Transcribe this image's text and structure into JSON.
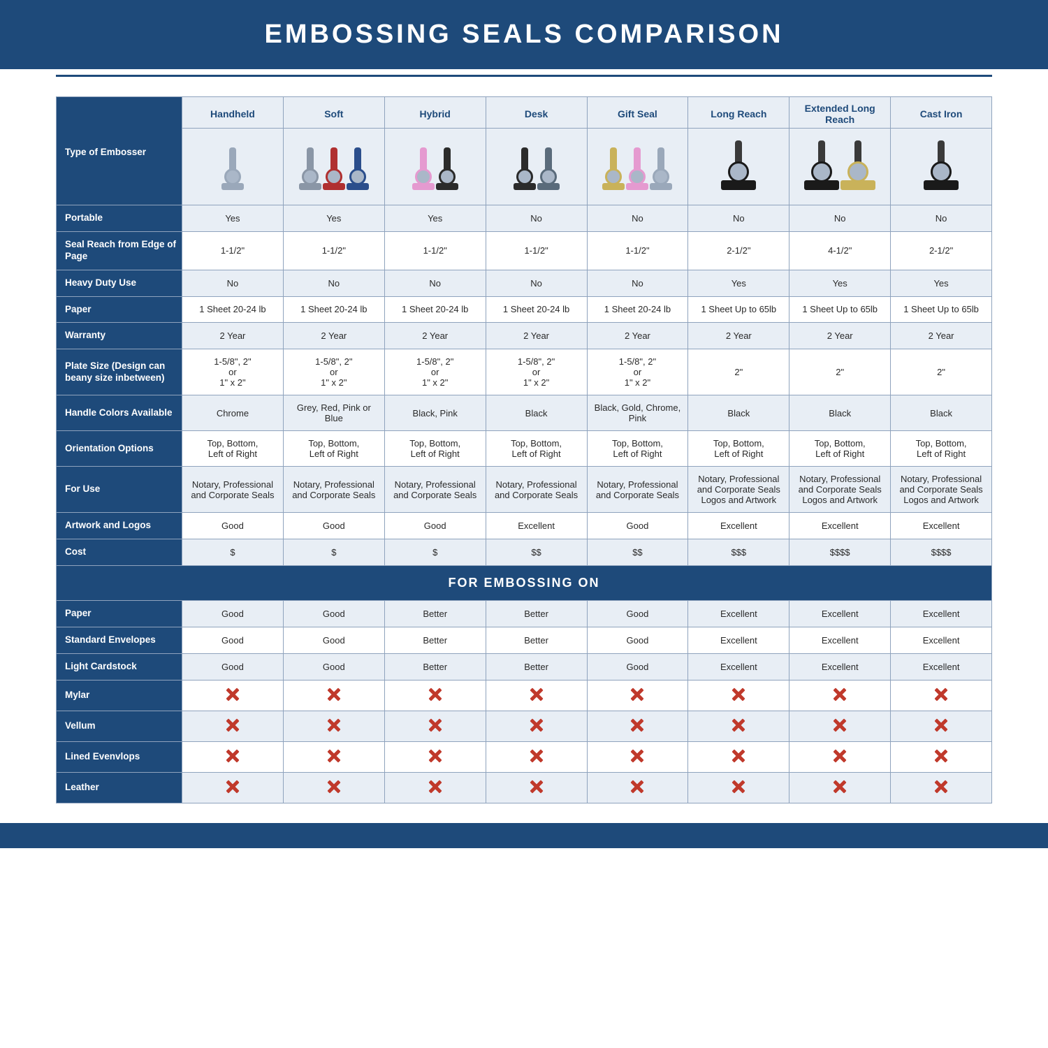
{
  "brand_color": "#1e4a7a",
  "row_alt_bg": "#e8eef5",
  "title": "EMBOSSING SEALS COMPARISON",
  "header_label": "Type of Embosser",
  "columns": [
    "Handheld",
    "Soft",
    "Hybrid",
    "Desk",
    "Gift Seal",
    "Long Reach",
    "Extended Long Reach",
    "Cast Iron"
  ],
  "section_label": "FOR EMBOSSING ON",
  "rows_main": [
    {
      "label": "Portable",
      "cells": [
        "Yes",
        "Yes",
        "Yes",
        "No",
        "No",
        "No",
        "No",
        "No"
      ]
    },
    {
      "label": "Seal Reach from Edge of Page",
      "cells": [
        "1-1/2\"",
        "1-1/2\"",
        "1-1/2\"",
        "1-1/2\"",
        "1-1/2\"",
        "2-1/2\"",
        "4-1/2\"",
        "2-1/2\""
      ]
    },
    {
      "label": "Heavy Duty Use",
      "cells": [
        "No",
        "No",
        "No",
        "No",
        "No",
        "Yes",
        "Yes",
        "Yes"
      ]
    },
    {
      "label": "Paper",
      "cells": [
        "1 Sheet 20-24 lb",
        "1 Sheet 20-24 lb",
        "1 Sheet 20-24 lb",
        "1 Sheet 20-24 lb",
        "1 Sheet 20-24 lb",
        "1 Sheet Up to 65lb",
        "1 Sheet Up to 65lb",
        "1 Sheet Up to 65lb"
      ]
    },
    {
      "label": "Warranty",
      "cells": [
        "2 Year",
        "2 Year",
        "2 Year",
        "2 Year",
        "2 Year",
        "2 Year",
        "2 Year",
        "2 Year"
      ]
    },
    {
      "label": "Plate Size (Design can beany size inbetween)",
      "cells": [
        "1-5/8\", 2\"\nor\n1\" x 2\"",
        "1-5/8\", 2\"\nor\n1\" x 2\"",
        "1-5/8\", 2\"\nor\n1\" x 2\"",
        "1-5/8\", 2\"\nor\n1\" x 2\"",
        "1-5/8\", 2\"\nor\n1\" x 2\"",
        "2\"",
        "2\"",
        "2\""
      ]
    },
    {
      "label": "Handle Colors Available",
      "cells": [
        "Chrome",
        "Grey, Red, Pink or Blue",
        "Black, Pink",
        "Black",
        "Black, Gold, Chrome, Pink",
        "Black",
        "Black",
        "Black"
      ]
    },
    {
      "label": "Orientation Options",
      "cells": [
        "Top, Bottom,\nLeft of Right",
        "Top, Bottom,\nLeft of Right",
        "Top, Bottom,\nLeft of Right",
        "Top, Bottom,\nLeft of Right",
        "Top, Bottom,\nLeft of Right",
        "Top, Bottom,\nLeft of Right",
        "Top, Bottom,\nLeft of Right",
        "Top, Bottom,\nLeft of Right"
      ]
    },
    {
      "label": "For Use",
      "cells": [
        "Notary, Professional and Corporate Seals",
        "Notary, Professional and Corporate Seals",
        "Notary, Professional and Corporate Seals",
        "Notary, Professional and Corporate Seals",
        "Notary, Professional and Corporate Seals",
        "Notary, Professional and Corporate Seals Logos and Artwork",
        "Notary, Professional and Corporate Seals Logos and Artwork",
        "Notary, Professional and Corporate Seals Logos and Artwork"
      ]
    },
    {
      "label": "Artwork and Logos",
      "cells": [
        "Good",
        "Good",
        "Good",
        "Excellent",
        "Good",
        "Excellent",
        "Excellent",
        "Excellent"
      ]
    },
    {
      "label": "Cost",
      "cells": [
        "$",
        "$",
        "$",
        "$$",
        "$$",
        "$$$",
        "$$$$",
        "$$$$"
      ]
    }
  ],
  "rows_embossing": [
    {
      "label": "Paper",
      "cells": [
        "Good",
        "Good",
        "Better",
        "Better",
        "Good",
        "Excellent",
        "Excellent",
        "Excellent"
      ]
    },
    {
      "label": "Standard Envelopes",
      "cells": [
        "Good",
        "Good",
        "Better",
        "Better",
        "Good",
        "Excellent",
        "Excellent",
        "Excellent"
      ]
    },
    {
      "label": "Light Cardstock",
      "cells": [
        "Good",
        "Good",
        "Better",
        "Better",
        "Good",
        "Excellent",
        "Excellent",
        "Excellent"
      ]
    },
    {
      "label": "Mylar",
      "cells": [
        "X",
        "X",
        "X",
        "X",
        "X",
        "X",
        "X",
        "X"
      ]
    },
    {
      "label": "Vellum",
      "cells": [
        "X",
        "X",
        "X",
        "X",
        "X",
        "X",
        "X",
        "X"
      ]
    },
    {
      "label": "Lined Evenvlops",
      "cells": [
        "X",
        "X",
        "X",
        "X",
        "X",
        "X",
        "X",
        "X"
      ]
    },
    {
      "label": "Leather",
      "cells": [
        "X",
        "X",
        "X",
        "X",
        "X",
        "X",
        "X",
        "X"
      ]
    }
  ],
  "product_icons": [
    {
      "variant": "slim",
      "count": 1,
      "colors": [
        "#9aa8ba"
      ]
    },
    {
      "variant": "slim",
      "count": 3,
      "colors": [
        "#8a96a6",
        "#b03030",
        "#2b4e8c"
      ]
    },
    {
      "variant": "slim",
      "count": 2,
      "colors": [
        "#e59ad0",
        "#2b2b2b"
      ]
    },
    {
      "variant": "slim",
      "count": 2,
      "colors": [
        "#2b2b2b",
        "#5a6b7b"
      ]
    },
    {
      "variant": "slim",
      "count": 3,
      "colors": [
        "#c9b25a",
        "#e59ad0",
        "#9aa8ba"
      ]
    },
    {
      "variant": "wide",
      "count": 1,
      "colors": [
        "#1a1a1a"
      ]
    },
    {
      "variant": "wide",
      "count": 2,
      "colors": [
        "#1a1a1a",
        "#c9b25a"
      ]
    },
    {
      "variant": "wide",
      "count": 1,
      "colors": [
        "#1a1a1a"
      ]
    }
  ]
}
